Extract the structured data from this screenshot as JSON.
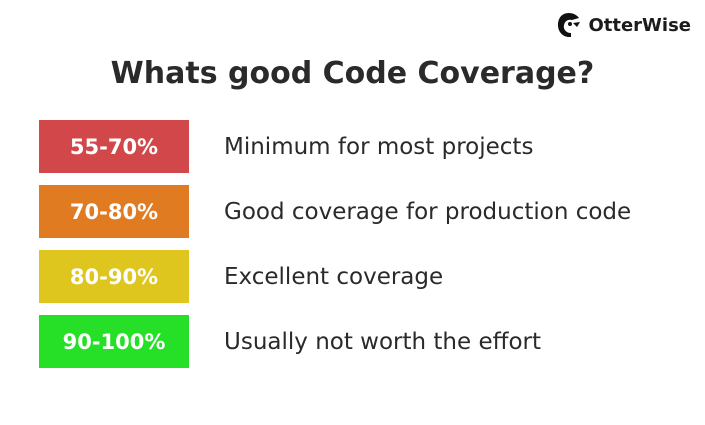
{
  "brand": "OtterWise",
  "title": "Whats good Code Coverage?",
  "rows": [
    {
      "range": "55-70%",
      "description": "Minimum for most projects",
      "color": "#d1474a"
    },
    {
      "range": "70-80%",
      "description": "Good coverage for production code",
      "color": "#e07b22"
    },
    {
      "range": "80-90%",
      "description": "Excellent coverage",
      "color": "#dfc61f"
    },
    {
      "range": "90-100%",
      "description": "Usually not worth the effort",
      "color": "#25e027"
    }
  ]
}
